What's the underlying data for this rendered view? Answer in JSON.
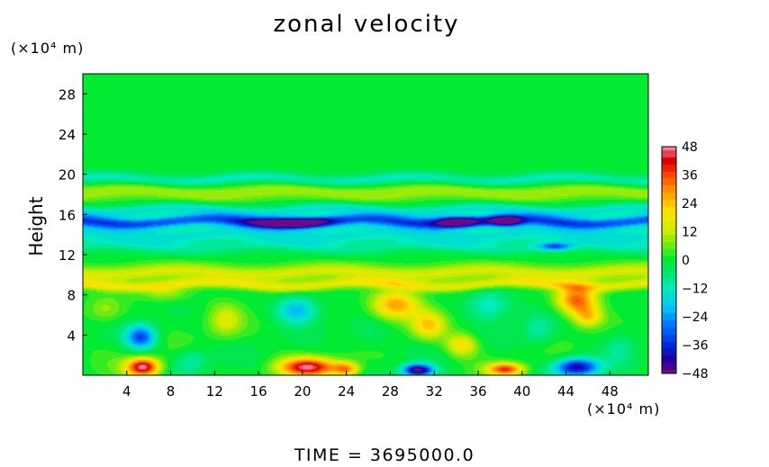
{
  "chart_data": {
    "type": "heatmap",
    "title": "zonal velocity",
    "ylabel": "Height",
    "y_unit": "(×10⁴ m)",
    "x_unit": "(×10⁴ m)",
    "footer": "TIME  =  3695000.0",
    "xlim": [
      0,
      51.5
    ],
    "ylim": [
      0,
      30
    ],
    "x_ticks": [
      "4",
      "8",
      "12",
      "16",
      "20",
      "24",
      "28",
      "32",
      "36",
      "40",
      "44",
      "48"
    ],
    "x_tick_values": [
      4,
      8,
      12,
      16,
      20,
      24,
      28,
      32,
      36,
      40,
      44,
      48
    ],
    "y_ticks": [
      "4",
      "8",
      "12",
      "16",
      "20",
      "24",
      "28"
    ],
    "y_tick_values": [
      4,
      8,
      12,
      16,
      20,
      24,
      28
    ],
    "colorbar": {
      "min": -48,
      "max": 48,
      "labels": [
        "48",
        "36",
        "24",
        "12",
        "0",
        "−12",
        "−24",
        "−36",
        "−48"
      ],
      "label_values": [
        48,
        36,
        24,
        12,
        0,
        -12,
        -24,
        -36,
        -48
      ]
    },
    "bands": [
      {
        "y": 19.5,
        "width": 0.6,
        "value": -12
      },
      {
        "y": 18.2,
        "width": 0.8,
        "value": 10
      },
      {
        "y": 16.4,
        "width": 0.6,
        "value": -14
      },
      {
        "y": 15.3,
        "width": 0.6,
        "value": -30
      },
      {
        "y": 14.0,
        "width": 0.9,
        "value": -14
      },
      {
        "y": 12.8,
        "width": 0.7,
        "value": -8
      },
      {
        "y": 10.2,
        "width": 0.8,
        "value": 14
      },
      {
        "y": 9.0,
        "width": 0.5,
        "value": 16
      }
    ],
    "features": [
      {
        "x": 5.5,
        "y": 0.8,
        "sx": 1.5,
        "sy": 0.9,
        "value": 48
      },
      {
        "x": 5.3,
        "y": 3.8,
        "sx": 1.4,
        "sy": 1.2,
        "value": -32
      },
      {
        "x": 20.5,
        "y": 0.8,
        "sx": 2.6,
        "sy": 0.9,
        "value": 44
      },
      {
        "x": 24.0,
        "y": 0.6,
        "sx": 1.2,
        "sy": 0.7,
        "value": 28
      },
      {
        "x": 30.5,
        "y": 0.5,
        "sx": 1.4,
        "sy": 0.6,
        "value": -48
      },
      {
        "x": 38.5,
        "y": 0.6,
        "sx": 1.6,
        "sy": 0.6,
        "value": 36
      },
      {
        "x": 45.0,
        "y": 0.8,
        "sx": 2.0,
        "sy": 0.9,
        "value": -42
      },
      {
        "x": 19.5,
        "y": 6.5,
        "sx": 1.8,
        "sy": 1.3,
        "value": -22
      },
      {
        "x": 28.5,
        "y": 7.0,
        "sx": 2.2,
        "sy": 1.4,
        "value": 28
      },
      {
        "x": 31.5,
        "y": 5.0,
        "sx": 1.5,
        "sy": 1.3,
        "value": 22
      },
      {
        "x": 34.5,
        "y": 3.0,
        "sx": 1.4,
        "sy": 1.1,
        "value": 20
      },
      {
        "x": 45.0,
        "y": 7.5,
        "sx": 1.8,
        "sy": 1.4,
        "value": 34
      },
      {
        "x": 46.0,
        "y": 5.8,
        "sx": 1.3,
        "sy": 1.0,
        "value": 20
      },
      {
        "x": 13.0,
        "y": 5.5,
        "sx": 1.5,
        "sy": 1.6,
        "value": 14
      },
      {
        "x": 10.0,
        "y": 1.5,
        "sx": 1.5,
        "sy": 1.2,
        "value": -10
      },
      {
        "x": 26.0,
        "y": 4.0,
        "sx": 1.8,
        "sy": 1.5,
        "value": -6
      },
      {
        "x": 37.0,
        "y": 7.0,
        "sx": 2.0,
        "sy": 1.5,
        "value": -14
      },
      {
        "x": 41.5,
        "y": 4.5,
        "sx": 1.5,
        "sy": 1.6,
        "value": -10
      },
      {
        "x": 49.0,
        "y": 3.0,
        "sx": 1.5,
        "sy": 1.5,
        "value": -8
      },
      {
        "x": 2.0,
        "y": 6.5,
        "sx": 1.5,
        "sy": 1.3,
        "value": 8
      },
      {
        "x": 7.5,
        "y": 8.2,
        "sx": 2.0,
        "sy": 0.8,
        "value": 10
      },
      {
        "x": 19.0,
        "y": 15.2,
        "sx": 3.5,
        "sy": 0.5,
        "value": -36
      },
      {
        "x": 34.0,
        "y": 15.3,
        "sx": 2.0,
        "sy": 0.5,
        "value": -34
      },
      {
        "x": 38.5,
        "y": 15.3,
        "sx": 1.5,
        "sy": 0.5,
        "value": -36
      },
      {
        "x": 43.0,
        "y": 12.8,
        "sx": 1.5,
        "sy": 0.4,
        "value": -24
      }
    ]
  }
}
